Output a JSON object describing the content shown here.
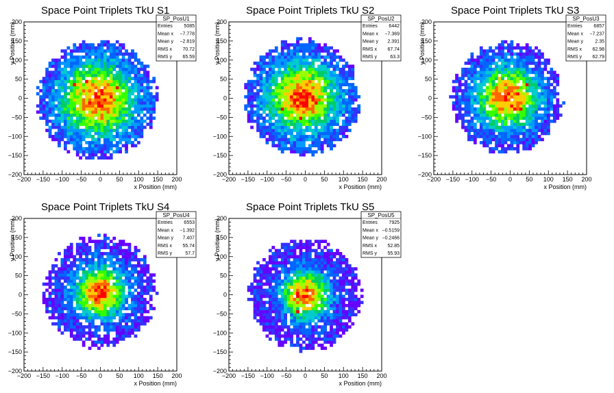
{
  "page": {
    "background": "#ffffff"
  },
  "chart_data": [
    {
      "type": "heatmap",
      "title": "Space Point Triplets TkU S1",
      "xlabel": "x Position (mm)",
      "ylabel": "y Position (mm)",
      "xlim": [
        -200,
        200
      ],
      "ylim": [
        -200,
        200
      ],
      "xticks": [
        -200,
        -150,
        -100,
        -50,
        0,
        50,
        100,
        150,
        200
      ],
      "yticks": [
        -200,
        -150,
        -100,
        -50,
        0,
        50,
        100,
        150,
        200
      ],
      "distribution": {
        "center": [
          -7.778,
          -2.819
        ],
        "radius": 160,
        "sigma": 70
      },
      "stats": {
        "name": "SP_PosU1",
        "rows": [
          {
            "label": "Entries",
            "value": "5085"
          },
          {
            "label": "Mean x",
            "value": "−7.778"
          },
          {
            "label": "Mean y",
            "value": "−2.819"
          },
          {
            "label": "RMS x",
            "value": "70.72"
          },
          {
            "label": "RMS y",
            "value": "65.59"
          }
        ]
      }
    },
    {
      "type": "heatmap",
      "title": "Space Point Triplets TkU S2",
      "xlabel": "x Position (mm)",
      "ylabel": "y Position (mm)",
      "xlim": [
        -200,
        200
      ],
      "ylim": [
        -200,
        200
      ],
      "xticks": [
        -200,
        -150,
        -100,
        -50,
        0,
        50,
        100,
        150,
        200
      ],
      "yticks": [
        -200,
        -150,
        -100,
        -50,
        0,
        50,
        100,
        150,
        200
      ],
      "distribution": {
        "center": [
          -7.369,
          2.391
        ],
        "radius": 155,
        "sigma": 66
      },
      "stats": {
        "name": "SP_PosU2",
        "rows": [
          {
            "label": "Entries",
            "value": "6442"
          },
          {
            "label": "Mean x",
            "value": "−7.369"
          },
          {
            "label": "Mean y",
            "value": "2.391"
          },
          {
            "label": "RMS x",
            "value": "67.74"
          },
          {
            "label": "RMS y",
            "value": "63.3"
          }
        ]
      }
    },
    {
      "type": "heatmap",
      "title": "Space Point Triplets TkU S3",
      "xlabel": "x Position (mm)",
      "ylabel": "y Position (mm)",
      "xlim": [
        -200,
        200
      ],
      "ylim": [
        -200,
        200
      ],
      "xticks": [
        -200,
        -150,
        -100,
        -50,
        0,
        50,
        100,
        150,
        200
      ],
      "yticks": [
        -200,
        -150,
        -100,
        -50,
        0,
        50,
        100,
        150,
        200
      ],
      "distribution": {
        "center": [
          -7.237,
          2.35
        ],
        "radius": 150,
        "sigma": 58
      },
      "stats": {
        "name": "SP_PosU3",
        "rows": [
          {
            "label": "Entries",
            "value": "6857"
          },
          {
            "label": "Mean x",
            "value": "−7.237"
          },
          {
            "label": "Mean y",
            "value": "2.35"
          },
          {
            "label": "RMS x",
            "value": "62.98"
          },
          {
            "label": "RMS y",
            "value": "62.79"
          }
        ]
      }
    },
    {
      "type": "heatmap",
      "title": "Space Point Triplets TkU S4",
      "xlabel": "x Position (mm)",
      "ylabel": "y Position (mm)",
      "xlim": [
        -200,
        200
      ],
      "ylim": [
        -200,
        200
      ],
      "xticks": [
        -200,
        -150,
        -100,
        -50,
        0,
        50,
        100,
        150,
        200
      ],
      "yticks": [
        -200,
        -150,
        -100,
        -50,
        0,
        50,
        100,
        150,
        200
      ],
      "distribution": {
        "center": [
          -1.392,
          7.407
        ],
        "radius": 150,
        "sigma": 48
      },
      "stats": {
        "name": "SP_PosU4",
        "rows": [
          {
            "label": "Entries",
            "value": "6553"
          },
          {
            "label": "Mean x",
            "value": "−1.392"
          },
          {
            "label": "Mean y",
            "value": "7.407"
          },
          {
            "label": "RMS x",
            "value": "55.74"
          },
          {
            "label": "RMS y",
            "value": "57.7"
          }
        ]
      }
    },
    {
      "type": "heatmap",
      "title": "Space Point Triplets TkU S5",
      "xlabel": "x Position (mm)",
      "ylabel": "y Position (mm)",
      "xlim": [
        -200,
        200
      ],
      "ylim": [
        -200,
        200
      ],
      "xticks": [
        -200,
        -150,
        -100,
        -50,
        0,
        50,
        100,
        150,
        200
      ],
      "yticks": [
        -200,
        -150,
        -100,
        -50,
        0,
        50,
        100,
        150,
        200
      ],
      "distribution": {
        "center": [
          -0.5159,
          -0.2466
        ],
        "radius": 150,
        "sigma": 44
      },
      "stats": {
        "name": "SP_PosU5",
        "rows": [
          {
            "label": "Entries",
            "value": "7925"
          },
          {
            "label": "Mean x",
            "value": "−0.5159"
          },
          {
            "label": "Mean y",
            "value": "−0.2466"
          },
          {
            "label": "RMS x",
            "value": "52.85"
          },
          {
            "label": "RMS y",
            "value": "55.93"
          }
        ]
      }
    }
  ],
  "colors": {
    "palette": [
      "#6600ff",
      "#3333ff",
      "#0066ff",
      "#0099ff",
      "#00cccc",
      "#00cc66",
      "#33ff00",
      "#99ff00",
      "#ffcc00",
      "#ff6600",
      "#ff0000"
    ],
    "frame": "#000000",
    "background": "#ffffff"
  }
}
